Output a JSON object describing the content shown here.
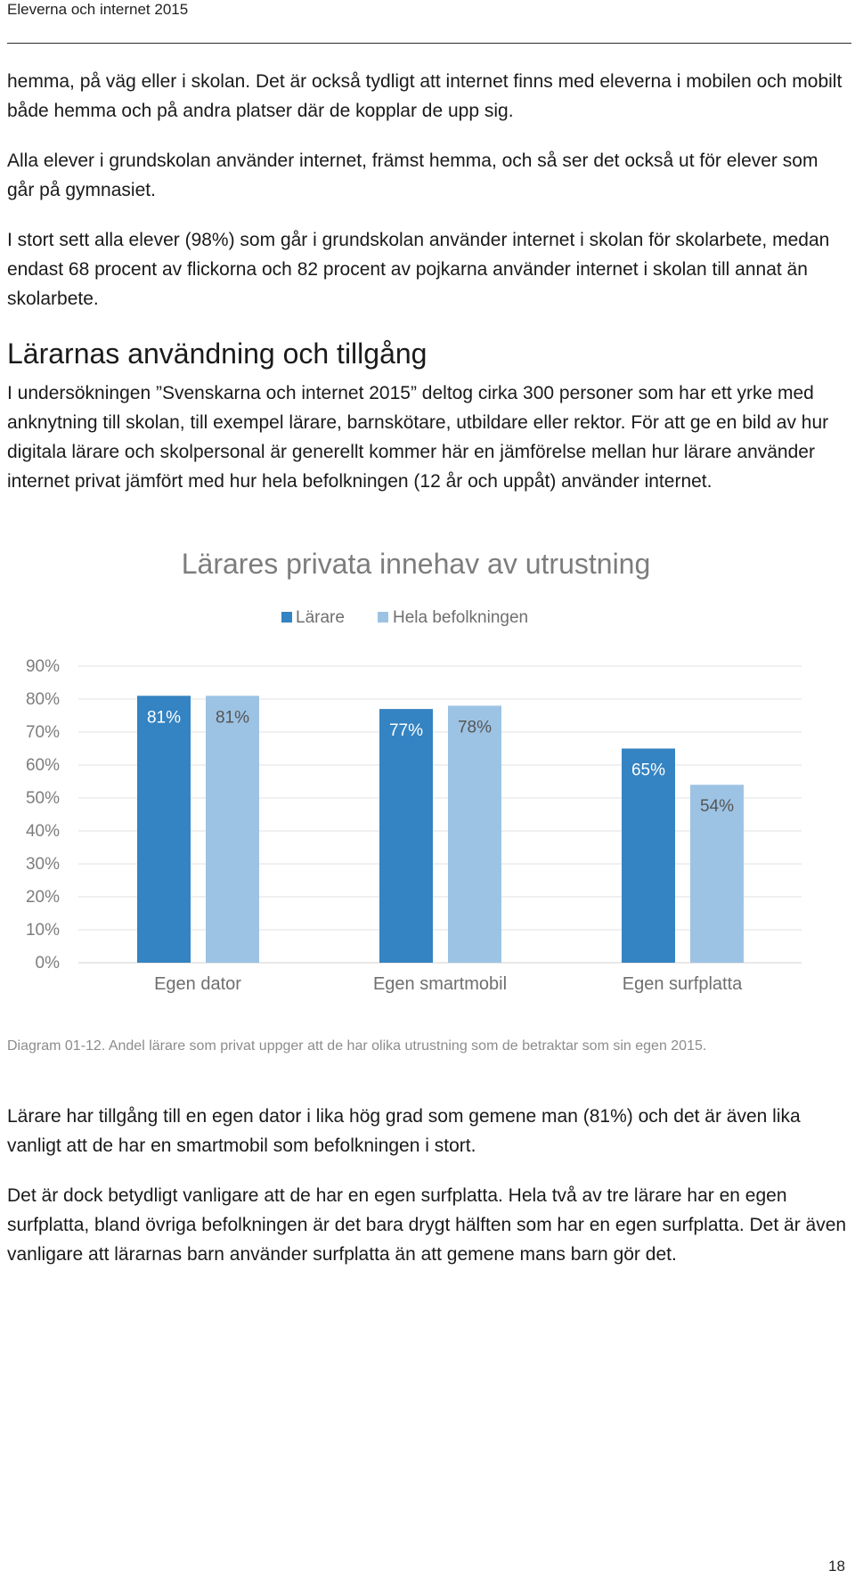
{
  "header": {
    "title": "Eleverna och internet 2015"
  },
  "intro": {
    "p1": "hemma, på väg eller i skolan. Det är också tydligt att internet finns med eleverna i mobilen och mobilt både hemma och på andra platser där de kopplar de upp sig.",
    "p2": "Alla elever i grundskolan använder internet, främst hemma, och så ser det också ut för elever som går på gymnasiet.",
    "p3": "I stort sett alla elever (98%) som går i grundskolan använder internet i skolan för skolarbete, medan endast 68 procent av flickorna och 82 procent av pojkarna använder internet i skolan till annat än skolarbete."
  },
  "section": {
    "title": "Lärarnas användning och tillgång",
    "p1": "I undersökningen ”Svenskarna och internet 2015” deltog cirka 300 personer som har ett yrke med anknytning till skolan, till exempel lärare, barnskötare, utbildare eller rektor. För att ge en bild av hur digitala lärare och skolpersonal är generellt kommer här en jämförelse mellan hur lärare använder internet privat jämfört med hur hela befolkningen (12 år och uppåt) använder internet."
  },
  "chart_data": {
    "type": "bar",
    "title": "Lärares privata innehav av utrustning",
    "categories": [
      "Egen dator",
      "Egen smartmobil",
      "Egen surfplatta"
    ],
    "series": [
      {
        "name": "Lärare",
        "values": [
          81,
          77,
          65
        ],
        "labels": [
          "81%",
          "77%",
          "65%"
        ],
        "color": "#3483c2"
      },
      {
        "name": "Hela befolkningen",
        "values": [
          81,
          78,
          54
        ],
        "labels": [
          "81%",
          "78%",
          "54%"
        ],
        "color": "#9dc3e4"
      }
    ],
    "yticks": [
      "90%",
      "80%",
      "70%",
      "60%",
      "50%",
      "40%",
      "30%",
      "20%",
      "10%",
      "0%"
    ],
    "ylim": [
      0,
      90
    ],
    "grid": true,
    "legend": "top-center"
  },
  "caption": "Diagram 01-12. Andel lärare som privat uppger att de har olika utrustning som de betraktar som sin egen 2015.",
  "after": {
    "p1": "Lärare har tillgång till en egen dator i lika hög grad som gemene man (81%) och det är även lika vanligt att de har en smartmobil som befolkningen i stort.",
    "p2": "Det är dock betydligt vanligare att de har en egen surfplatta. Hela två av tre lärare har en egen surfplatta, bland övriga befolkningen är det bara drygt hälften som har en egen surfplatta. Det är även vanligare att lärarnas barn använder surfplatta än att gemene mans barn gör det."
  },
  "page_number": "18"
}
